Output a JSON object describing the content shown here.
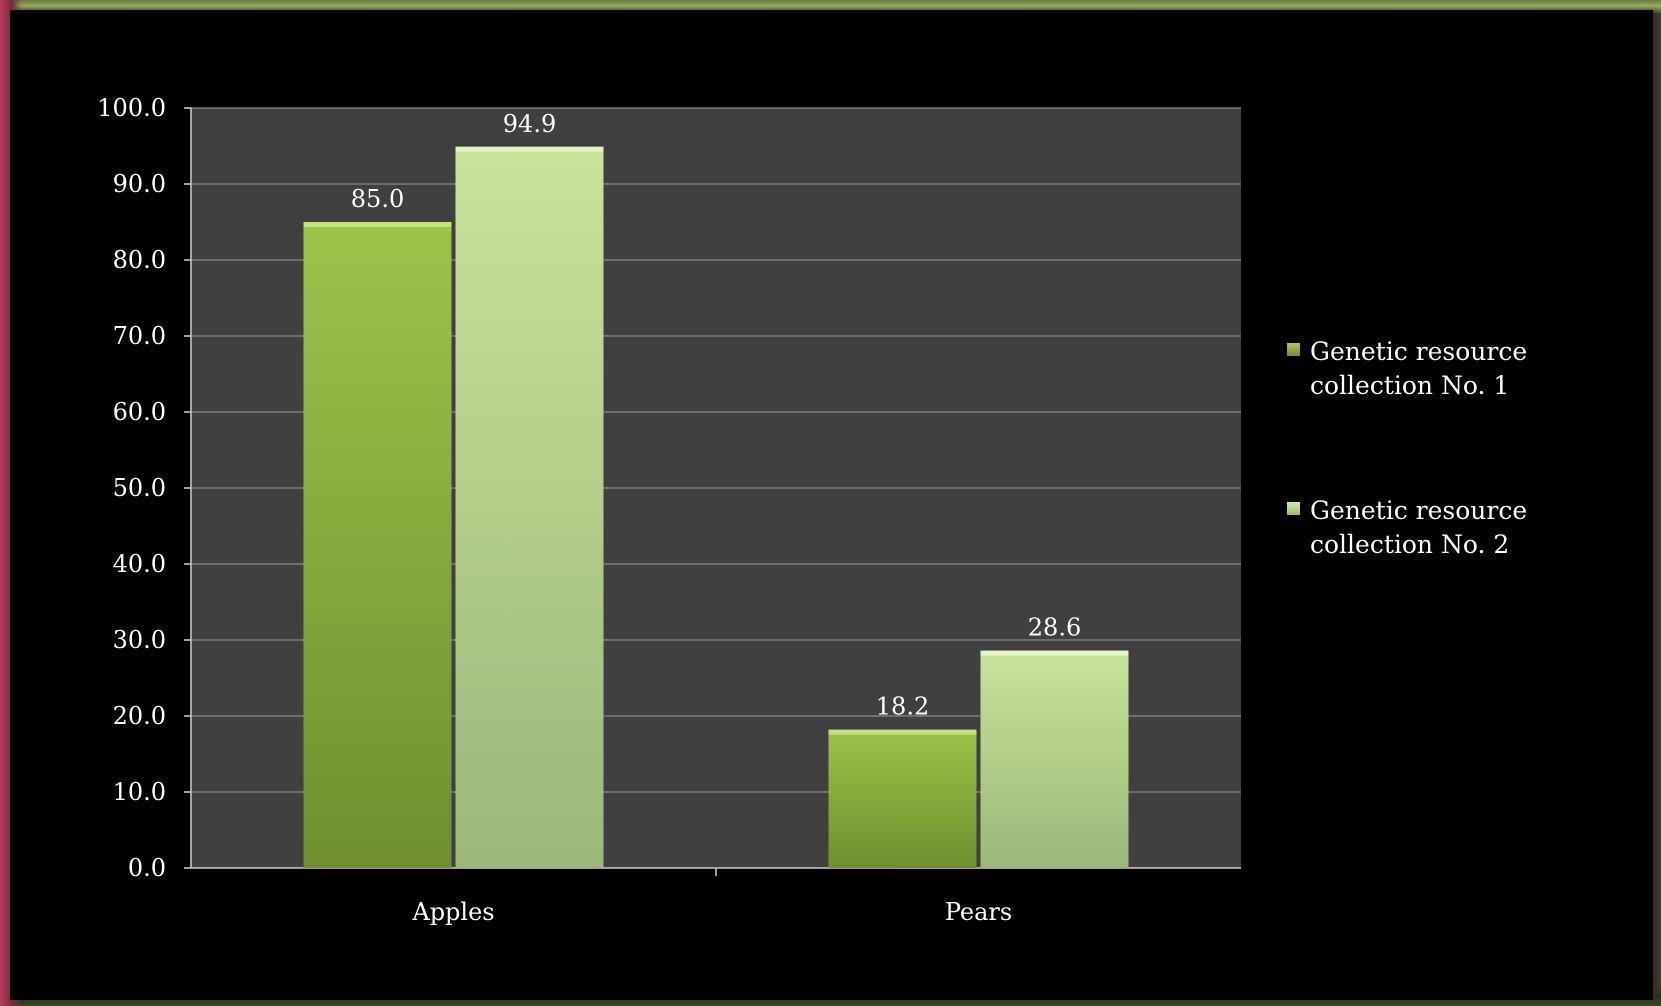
{
  "chart_data": {
    "type": "bar",
    "title": "",
    "xlabel": "",
    "ylabel": "",
    "categories": [
      "Apples",
      "Pears"
    ],
    "series": [
      {
        "name": "Genetic resource collection No. 1",
        "values": [
          85.0,
          18.2
        ],
        "color": "#8db43e"
      },
      {
        "name": "Genetic resource collection No. 2",
        "values": [
          94.9,
          28.6
        ],
        "color": "#b7d488"
      }
    ],
    "ylim": [
      0,
      100
    ],
    "yticks": [
      "0.0",
      "10.0",
      "20.0",
      "30.0",
      "40.0",
      "50.0",
      "60.0",
      "70.0",
      "80.0",
      "90.0",
      "100.0"
    ],
    "data_labels": [
      [
        "85.0",
        "18.2"
      ],
      [
        "94.9",
        "28.6"
      ]
    ],
    "grid": true,
    "legend_position": "right",
    "plot_background": "#404040"
  }
}
